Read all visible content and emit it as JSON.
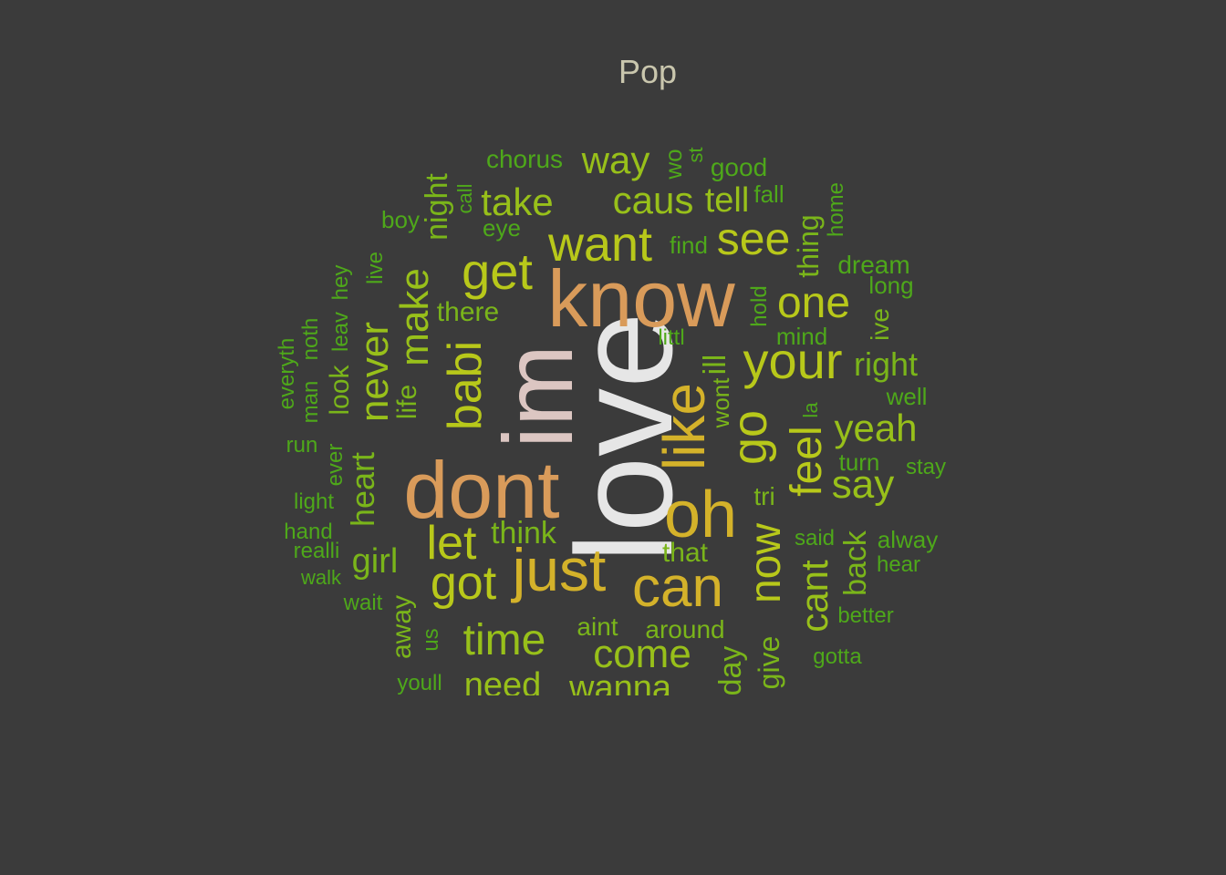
{
  "title": "Pop",
  "palette": {
    "background": "#3b3b3b",
    "title": "#c9c6ad",
    "love": "#e6e6e6",
    "im": "#dcc6c2",
    "dont_know": "#d99b5a",
    "gold": "#d4b22a",
    "lime": "#b8c81a",
    "yellowgreen": "#98c01a",
    "green": "#7ab51a",
    "darkgreen": "#4ea81a"
  },
  "words": [
    {
      "text": "love",
      "tone": "love"
    },
    {
      "text": "im",
      "tone": "im"
    },
    {
      "text": "know",
      "tone": "dont_know"
    },
    {
      "text": "dont",
      "tone": "dont_know"
    },
    {
      "text": "oh",
      "tone": "gold"
    },
    {
      "text": "just",
      "tone": "gold"
    },
    {
      "text": "like",
      "tone": "gold"
    },
    {
      "text": "can",
      "tone": "gold"
    },
    {
      "text": "your",
      "tone": "lime"
    },
    {
      "text": "get",
      "tone": "lime"
    },
    {
      "text": "go",
      "tone": "lime"
    },
    {
      "text": "want",
      "tone": "lime"
    },
    {
      "text": "babi",
      "tone": "lime"
    },
    {
      "text": "got",
      "tone": "lime"
    },
    {
      "text": "let",
      "tone": "lime"
    },
    {
      "text": "see",
      "tone": "lime"
    },
    {
      "text": "one",
      "tone": "lime"
    },
    {
      "text": "now",
      "tone": "lime"
    },
    {
      "text": "feel",
      "tone": "lime"
    },
    {
      "text": "time",
      "tone": "yellowgreen"
    },
    {
      "text": "come",
      "tone": "yellowgreen"
    },
    {
      "text": "make",
      "tone": "yellowgreen"
    },
    {
      "text": "never",
      "tone": "yellowgreen"
    },
    {
      "text": "say",
      "tone": "yellowgreen"
    },
    {
      "text": "yeah",
      "tone": "yellowgreen"
    },
    {
      "text": "cant",
      "tone": "yellowgreen"
    },
    {
      "text": "caus",
      "tone": "yellowgreen"
    },
    {
      "text": "take",
      "tone": "yellowgreen"
    },
    {
      "text": "way",
      "tone": "yellowgreen"
    },
    {
      "text": "tell",
      "tone": "yellowgreen"
    },
    {
      "text": "need",
      "tone": "yellowgreen"
    },
    {
      "text": "wanna",
      "tone": "yellowgreen"
    },
    {
      "text": "heart",
      "tone": "green"
    },
    {
      "text": "girl",
      "tone": "green"
    },
    {
      "text": "right",
      "tone": "green"
    },
    {
      "text": "back",
      "tone": "green"
    },
    {
      "text": "think",
      "tone": "green"
    },
    {
      "text": "night",
      "tone": "green"
    },
    {
      "text": "day",
      "tone": "green"
    },
    {
      "text": "give",
      "tone": "green"
    },
    {
      "text": "ill",
      "tone": "green"
    },
    {
      "text": "thing",
      "tone": "green"
    },
    {
      "text": "there",
      "tone": "green"
    },
    {
      "text": "life",
      "tone": "green"
    },
    {
      "text": "look",
      "tone": "green"
    },
    {
      "text": "away",
      "tone": "green"
    },
    {
      "text": "that",
      "tone": "green"
    },
    {
      "text": "aint",
      "tone": "green"
    },
    {
      "text": "around",
      "tone": "green"
    },
    {
      "text": "tri",
      "tone": "green"
    },
    {
      "text": "ive",
      "tone": "green"
    },
    {
      "text": "wont",
      "tone": "green"
    },
    {
      "text": "chorus",
      "tone": "darkgreen"
    },
    {
      "text": "wo",
      "tone": "darkgreen"
    },
    {
      "text": "st",
      "tone": "darkgreen"
    },
    {
      "text": "good",
      "tone": "darkgreen"
    },
    {
      "text": "fall",
      "tone": "darkgreen"
    },
    {
      "text": "home",
      "tone": "darkgreen"
    },
    {
      "text": "call",
      "tone": "darkgreen"
    },
    {
      "text": "eye",
      "tone": "darkgreen"
    },
    {
      "text": "boy",
      "tone": "darkgreen"
    },
    {
      "text": "find",
      "tone": "darkgreen"
    },
    {
      "text": "dream",
      "tone": "darkgreen"
    },
    {
      "text": "long",
      "tone": "darkgreen"
    },
    {
      "text": "live",
      "tone": "darkgreen"
    },
    {
      "text": "hey",
      "tone": "darkgreen"
    },
    {
      "text": "leav",
      "tone": "darkgreen"
    },
    {
      "text": "noth",
      "tone": "darkgreen"
    },
    {
      "text": "everyth",
      "tone": "darkgreen"
    },
    {
      "text": "man",
      "tone": "darkgreen"
    },
    {
      "text": "littl",
      "tone": "darkgreen"
    },
    {
      "text": "hold",
      "tone": "darkgreen"
    },
    {
      "text": "mind",
      "tone": "darkgreen"
    },
    {
      "text": "well",
      "tone": "darkgreen"
    },
    {
      "text": "la",
      "tone": "darkgreen"
    },
    {
      "text": "run",
      "tone": "darkgreen"
    },
    {
      "text": "ever",
      "tone": "darkgreen"
    },
    {
      "text": "turn",
      "tone": "darkgreen"
    },
    {
      "text": "stay",
      "tone": "darkgreen"
    },
    {
      "text": "light",
      "tone": "darkgreen"
    },
    {
      "text": "hand",
      "tone": "darkgreen"
    },
    {
      "text": "realli",
      "tone": "darkgreen"
    },
    {
      "text": "walk",
      "tone": "darkgreen"
    },
    {
      "text": "wait",
      "tone": "darkgreen"
    },
    {
      "text": "said",
      "tone": "darkgreen"
    },
    {
      "text": "alway",
      "tone": "darkgreen"
    },
    {
      "text": "hear",
      "tone": "darkgreen"
    },
    {
      "text": "better",
      "tone": "darkgreen"
    },
    {
      "text": "us",
      "tone": "darkgreen"
    },
    {
      "text": "gotta",
      "tone": "darkgreen"
    },
    {
      "text": "youll",
      "tone": "darkgreen"
    }
  ]
}
